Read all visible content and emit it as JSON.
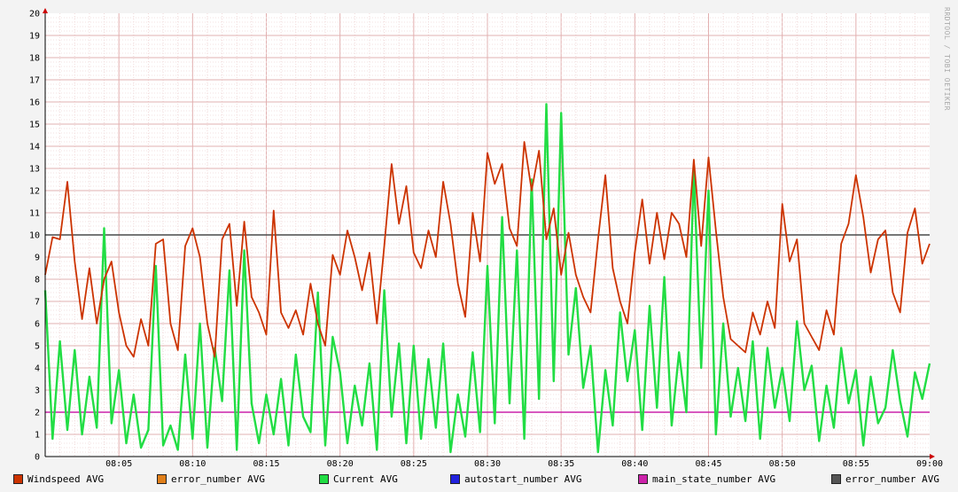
{
  "chart_data": {
    "type": "line",
    "ylim": [
      0,
      20
    ],
    "y_ticks": [
      "0",
      "1",
      "2",
      "3",
      "4",
      "5",
      "6",
      "7",
      "8",
      "9",
      "10",
      "11",
      "12",
      "13",
      "14",
      "15",
      "16",
      "17",
      "18",
      "19",
      "20"
    ],
    "x_ticks": [
      "08:05",
      "08:10",
      "08:15",
      "08:20",
      "08:25",
      "08:30",
      "08:35",
      "08:40",
      "08:45",
      "08:50",
      "08:55",
      "09:00"
    ],
    "x_range_minutes": [
      0,
      60
    ],
    "grid": true,
    "legend_placement": "bottom",
    "watermark": "RRDTOOL / TOBI OETIKER",
    "hrules": [
      {
        "name": "error_number AVG",
        "value": 10,
        "color": "#4a4a4a"
      },
      {
        "name": "main_state_number AVG",
        "value": 2,
        "color": "#cc22aa"
      }
    ],
    "series": [
      {
        "name": "Windspeed AVG",
        "color": "#cc3300",
        "x": [
          0,
          0.5,
          1,
          1.5,
          2,
          2.5,
          3,
          3.5,
          4,
          4.5,
          5,
          5.5,
          6,
          6.5,
          7,
          7.5,
          8,
          8.5,
          9,
          9.5,
          10,
          10.5,
          11,
          11.5,
          12,
          12.5,
          13,
          13.5,
          14,
          14.5,
          15,
          15.5,
          16,
          16.5,
          17,
          17.5,
          18,
          18.5,
          19,
          19.5,
          20,
          20.5,
          21,
          21.5,
          22,
          22.5,
          23,
          23.5,
          24,
          24.5,
          25,
          25.5,
          26,
          26.5,
          27,
          27.5,
          28,
          28.5,
          29,
          29.5,
          30,
          30.5,
          31,
          31.5,
          32,
          32.5,
          33,
          33.5,
          34,
          34.5,
          35,
          35.5,
          36,
          36.5,
          37,
          37.5,
          38,
          38.5,
          39,
          39.5,
          40,
          40.5,
          41,
          41.5,
          42,
          42.5,
          43,
          43.5,
          44,
          44.5,
          45,
          45.5,
          46,
          46.5,
          47,
          47.5,
          48,
          48.5,
          49,
          49.5,
          50,
          50.5,
          51,
          51.5,
          52,
          52.5,
          53,
          53.5,
          54,
          54.5,
          55,
          55.5,
          56,
          56.5,
          57,
          57.5,
          58,
          58.5,
          59,
          59.5,
          60
        ],
        "y": [
          8.2,
          9.9,
          9.8,
          12.4,
          8.8,
          6.2,
          8.5,
          6.0,
          8.0,
          8.8,
          6.5,
          5.0,
          4.5,
          6.2,
          5.0,
          9.6,
          9.8,
          6.0,
          4.8,
          9.5,
          10.3,
          9.0,
          6.0,
          4.5,
          9.8,
          10.5,
          6.8,
          10.6,
          7.2,
          6.5,
          5.5,
          11.1,
          6.5,
          5.8,
          6.6,
          5.5,
          7.8,
          6.0,
          5.0,
          9.1,
          8.2,
          10.2,
          9.0,
          7.5,
          9.2,
          6.0,
          9.5,
          13.2,
          10.5,
          12.2,
          9.2,
          8.5,
          10.2,
          9.0,
          12.4,
          10.5,
          7.8,
          6.3,
          11.0,
          8.8,
          13.7,
          12.3,
          13.2,
          10.3,
          9.5,
          14.2,
          12.0,
          13.8,
          9.8,
          11.2,
          8.2,
          10.1,
          8.2,
          7.2,
          6.5,
          9.8,
          12.7,
          8.5,
          7.0,
          6.0,
          9.2,
          11.6,
          8.7,
          11.0,
          8.9,
          11.0,
          10.5,
          9.0,
          13.4,
          9.5,
          13.5,
          10.2,
          7.2,
          5.3,
          5.0,
          4.7,
          6.5,
          5.5,
          7.0,
          5.8,
          11.4,
          8.8,
          9.8,
          6.0,
          5.4,
          4.8,
          6.6,
          5.5,
          9.6,
          10.5,
          12.7,
          10.8,
          8.3,
          9.8,
          10.2,
          7.4,
          6.5,
          10.1,
          11.2,
          8.7,
          9.6
        ]
      },
      {
        "name": "error_number AVG",
        "color": "#e07f1a"
      },
      {
        "name": "Current AVG",
        "color": "#22dd44",
        "x": [
          0,
          0.5,
          1,
          1.5,
          2,
          2.5,
          3,
          3.5,
          4,
          4.5,
          5,
          5.5,
          6,
          6.5,
          7,
          7.5,
          8,
          8.5,
          9,
          9.5,
          10,
          10.5,
          11,
          11.5,
          12,
          12.5,
          13,
          13.5,
          14,
          14.5,
          15,
          15.5,
          16,
          16.5,
          17,
          17.5,
          18,
          18.5,
          19,
          19.5,
          20,
          20.5,
          21,
          21.5,
          22,
          22.5,
          23,
          23.5,
          24,
          24.5,
          25,
          25.5,
          26,
          26.5,
          27,
          27.5,
          28,
          28.5,
          29,
          29.5,
          30,
          30.5,
          31,
          31.5,
          32,
          32.5,
          33,
          33.5,
          34,
          34.5,
          35,
          35.5,
          36,
          36.5,
          37,
          37.5,
          38,
          38.5,
          39,
          39.5,
          40,
          40.5,
          41,
          41.5,
          42,
          42.5,
          43,
          43.5,
          44,
          44.5,
          45,
          45.5,
          46,
          46.5,
          47,
          47.5,
          48,
          48.5,
          49,
          49.5,
          50,
          50.5,
          51,
          51.5,
          52,
          52.5,
          53,
          53.5,
          54,
          54.5,
          55,
          55.5,
          56,
          56.5,
          57,
          57.5,
          58,
          58.5,
          59,
          59.5,
          60
        ],
        "y": [
          7.5,
          0.8,
          5.2,
          1.2,
          4.8,
          1.0,
          3.6,
          1.3,
          10.3,
          1.5,
          3.9,
          0.6,
          2.8,
          0.4,
          1.2,
          8.6,
          0.5,
          1.4,
          0.3,
          4.6,
          0.8,
          6.0,
          0.4,
          4.9,
          2.5,
          8.4,
          0.3,
          9.3,
          2.4,
          0.6,
          2.8,
          1.0,
          3.5,
          0.5,
          4.6,
          1.8,
          1.1,
          7.4,
          0.5,
          5.4,
          3.8,
          0.6,
          3.2,
          1.4,
          4.2,
          0.3,
          7.5,
          1.8,
          5.1,
          0.6,
          5.0,
          0.8,
          4.4,
          1.3,
          5.1,
          0.2,
          2.8,
          0.9,
          4.7,
          1.1,
          8.6,
          1.5,
          10.8,
          2.4,
          9.3,
          0.8,
          12.5,
          2.6,
          15.9,
          3.4,
          15.5,
          4.6,
          7.6,
          3.1,
          5.0,
          0.2,
          3.9,
          1.4,
          6.5,
          3.4,
          5.7,
          1.2,
          6.8,
          2.2,
          8.1,
          1.4,
          4.7,
          2.0,
          12.9,
          4.0,
          12.0,
          1.0,
          6.0,
          1.8,
          4.0,
          1.6,
          5.2,
          0.8,
          4.9,
          2.2,
          4.0,
          1.6,
          6.1,
          3.0,
          4.1,
          0.7,
          3.2,
          1.3,
          4.9,
          2.4,
          3.9,
          0.5,
          3.6,
          1.5,
          2.2,
          4.8,
          2.5,
          0.9,
          3.8,
          2.6,
          4.2
        ]
      },
      {
        "name": "autostart_number AVG",
        "color": "#2222dd"
      },
      {
        "name": "main_state_number AVG",
        "color": "#cc22aa"
      },
      {
        "name": "error_number AVG",
        "color": "#555555"
      }
    ]
  }
}
